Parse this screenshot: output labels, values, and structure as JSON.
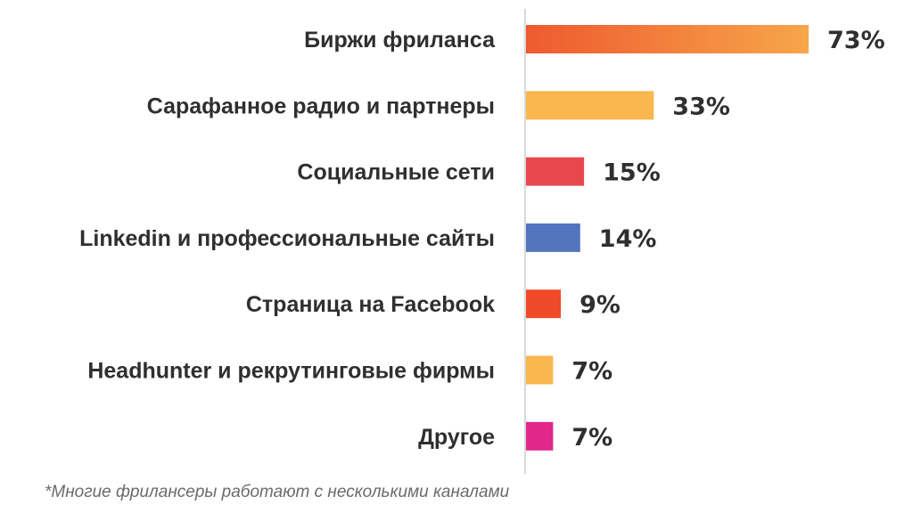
{
  "chart_data": {
    "type": "bar",
    "orientation": "horizontal",
    "categories": [
      "Биржи фриланса",
      "Сарафанное радио и партнеры",
      "Социальные сети",
      "Linkedin и профессиональные сайты",
      "Страница на Facebook",
      "Headhunter и рекрутинговые фирмы",
      "Другое"
    ],
    "values": [
      73,
      33,
      15,
      14,
      9,
      7,
      7
    ],
    "value_labels": [
      "73%",
      "33%",
      "15%",
      "14%",
      "9%",
      "7%",
      "7%"
    ],
    "colors": [
      [
        "#ee5a2f",
        "#f7a64a"
      ],
      [
        "#f9b74d",
        "#f9b74d"
      ],
      [
        "#e8484d",
        "#e8484d"
      ],
      [
        "#5474c0",
        "#5474c0"
      ],
      [
        "#ee4a2a",
        "#ee4a2a"
      ],
      [
        "#f9b74d",
        "#f9b74d"
      ],
      [
        "#e0288a",
        "#e0288a"
      ]
    ],
    "xlim": [
      0,
      73
    ],
    "grid": false,
    "legend": "none"
  },
  "footnote": "*Многие фрилансеры работают с несколькими каналами"
}
